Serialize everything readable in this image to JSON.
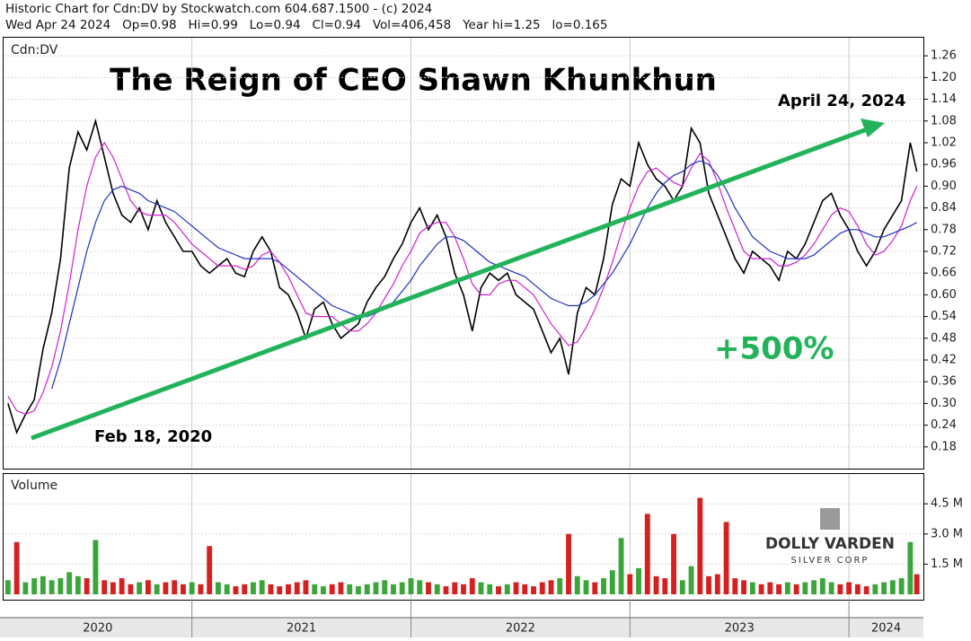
{
  "chart_data": [
    {
      "type": "line",
      "header": [
        "Historic Chart for Cdn:DV by Stockwatch.com 604.687.1500 - (c) 2024",
        "Wed Apr 24 2024   Op=0.98   Hi=0.99   Lo=0.94   Cl=0.94   Vol=406,458   Year hi=1.25   lo=0.165"
      ],
      "title": "The Reign of CEO Shawn Khunkhun",
      "label": "Cdn:DV",
      "annotations": [
        "Feb 18, 2020",
        "April 24, 2024",
        "+500%"
      ],
      "grid": true,
      "x": [
        2020.16,
        2020.2,
        2020.24,
        2020.28,
        2020.32,
        2020.36,
        2020.4,
        2020.44,
        2020.48,
        2020.52,
        2020.56,
        2020.6,
        2020.64,
        2020.68,
        2020.72,
        2020.76,
        2020.8,
        2020.84,
        2020.88,
        2020.92,
        2020.96,
        2021.0,
        2021.04,
        2021.08,
        2021.12,
        2021.16,
        2021.2,
        2021.24,
        2021.28,
        2021.32,
        2021.36,
        2021.4,
        2021.44,
        2021.48,
        2021.52,
        2021.56,
        2021.6,
        2021.64,
        2021.68,
        2021.72,
        2021.76,
        2021.8,
        2021.84,
        2021.88,
        2021.92,
        2021.96,
        2022.0,
        2022.04,
        2022.08,
        2022.12,
        2022.16,
        2022.2,
        2022.24,
        2022.28,
        2022.32,
        2022.36,
        2022.4,
        2022.44,
        2022.48,
        2022.52,
        2022.56,
        2022.6,
        2022.64,
        2022.68,
        2022.72,
        2022.76,
        2022.8,
        2022.84,
        2022.88,
        2022.92,
        2022.96,
        2023.0,
        2023.04,
        2023.08,
        2023.12,
        2023.16,
        2023.2,
        2023.24,
        2023.28,
        2023.32,
        2023.36,
        2023.4,
        2023.44,
        2023.48,
        2023.52,
        2023.56,
        2023.6,
        2023.64,
        2023.68,
        2023.72,
        2023.76,
        2023.8,
        2023.84,
        2023.88,
        2023.92,
        2023.96,
        2024.0,
        2024.04,
        2024.08,
        2024.12,
        2024.16,
        2024.2,
        2024.24,
        2024.28,
        2024.31
      ],
      "series": [
        {
          "color": "#000000",
          "values": [
            0.3,
            0.22,
            0.27,
            0.31,
            0.45,
            0.55,
            0.7,
            0.95,
            1.05,
            1.0,
            1.08,
            0.98,
            0.88,
            0.82,
            0.8,
            0.84,
            0.78,
            0.86,
            0.8,
            0.76,
            0.72,
            0.72,
            0.68,
            0.66,
            0.68,
            0.7,
            0.66,
            0.65,
            0.72,
            0.76,
            0.72,
            0.62,
            0.6,
            0.55,
            0.48,
            0.56,
            0.58,
            0.52,
            0.48,
            0.5,
            0.52,
            0.58,
            0.62,
            0.65,
            0.7,
            0.74,
            0.8,
            0.84,
            0.78,
            0.82,
            0.76,
            0.66,
            0.6,
            0.5,
            0.62,
            0.66,
            0.64,
            0.66,
            0.6,
            0.58,
            0.56,
            0.5,
            0.44,
            0.48,
            0.38,
            0.55,
            0.62,
            0.6,
            0.7,
            0.85,
            0.92,
            0.9,
            1.02,
            0.96,
            0.92,
            0.9,
            0.86,
            0.9,
            1.06,
            1.02,
            0.88,
            0.82,
            0.76,
            0.7,
            0.66,
            0.72,
            0.7,
            0.68,
            0.64,
            0.72,
            0.7,
            0.74,
            0.8,
            0.86,
            0.88,
            0.82,
            0.78,
            0.72,
            0.68,
            0.72,
            0.78,
            0.82,
            0.86,
            1.02,
            0.94
          ]
        },
        {
          "color": "#d020d0",
          "values": [
            0.32,
            0.28,
            0.27,
            0.28,
            0.33,
            0.4,
            0.5,
            0.63,
            0.78,
            0.9,
            0.98,
            1.02,
            0.98,
            0.92,
            0.86,
            0.83,
            0.82,
            0.82,
            0.82,
            0.8,
            0.77,
            0.74,
            0.72,
            0.7,
            0.68,
            0.68,
            0.68,
            0.67,
            0.68,
            0.71,
            0.72,
            0.69,
            0.65,
            0.6,
            0.55,
            0.54,
            0.54,
            0.54,
            0.52,
            0.5,
            0.5,
            0.52,
            0.55,
            0.59,
            0.63,
            0.68,
            0.72,
            0.77,
            0.79,
            0.8,
            0.8,
            0.76,
            0.7,
            0.63,
            0.6,
            0.6,
            0.63,
            0.64,
            0.64,
            0.62,
            0.6,
            0.56,
            0.52,
            0.49,
            0.46,
            0.47,
            0.51,
            0.56,
            0.62,
            0.69,
            0.77,
            0.84,
            0.9,
            0.94,
            0.95,
            0.93,
            0.91,
            0.9,
            0.95,
            0.99,
            0.97,
            0.91,
            0.84,
            0.78,
            0.72,
            0.7,
            0.7,
            0.7,
            0.68,
            0.68,
            0.69,
            0.71,
            0.74,
            0.78,
            0.82,
            0.84,
            0.83,
            0.79,
            0.74,
            0.71,
            0.72,
            0.75,
            0.79,
            0.86,
            0.9
          ]
        },
        {
          "color": "#2030c0",
          "values": [
            null,
            null,
            null,
            null,
            null,
            0.34,
            0.42,
            0.52,
            0.62,
            0.72,
            0.8,
            0.86,
            0.89,
            0.9,
            0.89,
            0.88,
            0.86,
            0.85,
            0.84,
            0.83,
            0.81,
            0.79,
            0.77,
            0.75,
            0.73,
            0.72,
            0.71,
            0.7,
            0.7,
            0.7,
            0.7,
            0.69,
            0.67,
            0.65,
            0.63,
            0.61,
            0.59,
            0.57,
            0.56,
            0.55,
            0.54,
            0.54,
            0.55,
            0.56,
            0.58,
            0.61,
            0.64,
            0.68,
            0.71,
            0.74,
            0.76,
            0.76,
            0.75,
            0.73,
            0.71,
            0.69,
            0.68,
            0.67,
            0.66,
            0.65,
            0.63,
            0.61,
            0.59,
            0.58,
            0.57,
            0.57,
            0.58,
            0.6,
            0.63,
            0.66,
            0.7,
            0.74,
            0.79,
            0.84,
            0.88,
            0.91,
            0.93,
            0.94,
            0.96,
            0.97,
            0.96,
            0.93,
            0.89,
            0.84,
            0.8,
            0.76,
            0.74,
            0.72,
            0.71,
            0.7,
            0.7,
            0.7,
            0.71,
            0.73,
            0.75,
            0.77,
            0.78,
            0.78,
            0.77,
            0.76,
            0.76,
            0.77,
            0.78,
            0.79,
            0.8
          ]
        }
      ],
      "xlim": [
        2020.14,
        2024.34
      ],
      "xticks": [
        2021,
        2022,
        2023,
        2024
      ],
      "year_labels": [
        "2020",
        "2021",
        "2022",
        "2023",
        "2024"
      ],
      "ylim": [
        0.12,
        1.31
      ],
      "yticks": [
        0.18,
        0.24,
        {
          "value": 0.3,
          "label": "0.30"
        },
        0.36,
        0.42,
        0.48,
        0.54,
        {
          "value": 0.6,
          "label": "0.60"
        },
        0.66,
        0.72,
        0.78,
        0.84,
        {
          "value": 0.9,
          "label": "0.90"
        },
        0.96,
        1.02,
        1.08,
        1.14,
        {
          "value": 1.2,
          "label": "1.20"
        },
        1.26
      ]
    },
    {
      "type": "bar",
      "label": "Volume",
      "up_color": "#3aa63a",
      "down_color": "#d62020",
      "values": [
        0.7,
        2.6,
        0.6,
        0.8,
        0.9,
        0.7,
        0.8,
        1.1,
        0.9,
        0.8,
        2.7,
        0.7,
        0.6,
        0.8,
        0.5,
        0.6,
        0.7,
        0.5,
        0.6,
        0.7,
        0.5,
        0.6,
        0.5,
        2.4,
        0.6,
        0.5,
        0.4,
        0.5,
        0.6,
        0.7,
        0.5,
        0.4,
        0.5,
        0.6,
        0.7,
        0.5,
        0.4,
        0.5,
        0.6,
        0.5,
        0.4,
        0.5,
        0.6,
        0.7,
        0.5,
        0.6,
        0.8,
        0.7,
        0.6,
        0.5,
        0.4,
        0.6,
        0.5,
        0.8,
        0.6,
        0.5,
        0.4,
        0.5,
        0.6,
        0.5,
        0.4,
        0.6,
        0.7,
        0.8,
        3.0,
        0.9,
        0.7,
        0.6,
        0.8,
        1.2,
        2.8,
        1.0,
        1.3,
        4.0,
        0.9,
        0.8,
        3.0,
        0.7,
        1.4,
        4.8,
        0.9,
        1.0,
        3.6,
        0.8,
        0.7,
        0.6,
        0.5,
        0.6,
        0.5,
        0.6,
        0.5,
        0.6,
        0.7,
        0.8,
        0.6,
        0.5,
        0.6,
        0.5,
        0.4,
        0.5,
        0.6,
        0.7,
        0.8,
        2.6,
        1.0
      ],
      "ylim": [
        0,
        5.67
      ],
      "yticks": [
        {
          "value": 1.5,
          "label": "1.5 M"
        },
        {
          "value": 3.0,
          "label": "3.0 M"
        },
        {
          "value": 4.5,
          "label": "4.5 M"
        }
      ],
      "logo": [
        "DOLLY VARDEN",
        "SILVER CORP"
      ]
    }
  ]
}
